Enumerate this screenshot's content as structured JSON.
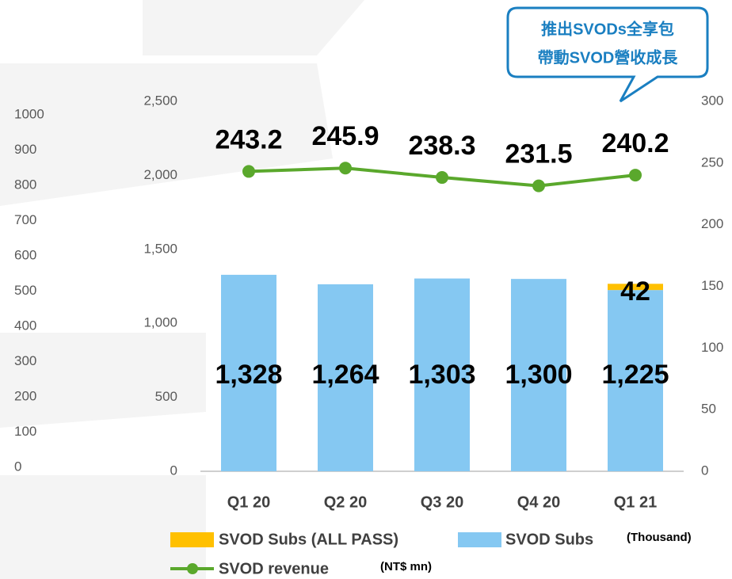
{
  "chart_data": {
    "type": "bar",
    "categories": [
      "Q1 20",
      "Q2 20",
      "Q3 20",
      "Q4 20",
      "Q1 21"
    ],
    "series": [
      {
        "name": "SVOD Subs (ALL PASS)",
        "color": "#ffc000",
        "values": [
          null,
          null,
          null,
          null,
          42
        ]
      },
      {
        "name": "SVOD Subs",
        "color": "#85c8f2",
        "values": [
          1328,
          1264,
          1303,
          1300,
          1225
        ],
        "value_labels": [
          "1,328",
          "1,264",
          "1,303",
          "1,300",
          "1,225"
        ]
      },
      {
        "name": "SVOD revenue",
        "type": "line",
        "axis": "y2",
        "color": "#5aa82c",
        "values": [
          243.2,
          245.9,
          238.3,
          231.5,
          240.2
        ]
      }
    ],
    "ylim": [
      0,
      2500
    ],
    "yticks": [
      0,
      {
        "value": 500,
        "label": "500"
      },
      {
        "value": 1000,
        "label": "1,000"
      },
      {
        "value": 1500,
        "label": "1,500"
      },
      {
        "value": 2000,
        "label": "2,000"
      },
      {
        "value": 2500,
        "label": "2,500"
      }
    ],
    "y2lim": [
      0,
      300
    ],
    "y2ticks": [
      0,
      50,
      100,
      150,
      200,
      250,
      300
    ],
    "y3lim": [
      0,
      1000
    ],
    "y3ticks": [
      0,
      100,
      200,
      300,
      400,
      500,
      600,
      700,
      800,
      900,
      1000
    ],
    "y_unit": "(Thousand)",
    "y2_unit": "(NT$ mn)",
    "annotation": [
      "推出SVODs全享包",
      "帶動SVOD營收成長"
    ],
    "grid": false
  }
}
